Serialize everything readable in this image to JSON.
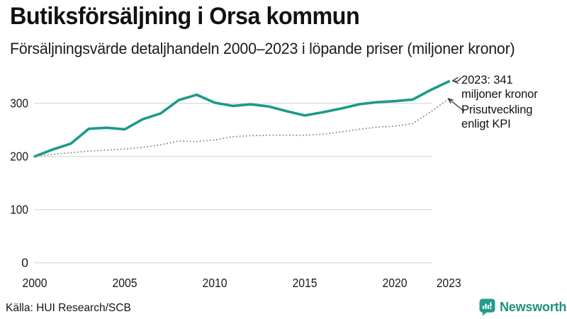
{
  "title": "Butiksförsäljning i Orsa kommun",
  "subtitle": "Försäljningsvärde detaljhandeln 2000–2023 i löpande priser (miljoner kronor)",
  "source": "Källa: HUI Research/SCB",
  "logo": {
    "text": "Newsworthy",
    "icon": "newsworthy-bubble-chart-icon"
  },
  "colors": {
    "accent": "#1c9a89",
    "kpi_dotted": "#8f8f8f",
    "grid": "#dedede",
    "text": "#111111",
    "logo": "#1f8f80"
  },
  "annotations": [
    {
      "lines": [
        "2023: 341",
        "miljoner kronor"
      ],
      "points_to": "solid-line-end"
    },
    {
      "lines": [
        "Prisutveckling",
        "enligt KPI"
      ],
      "points_to": "dotted-line-end"
    }
  ],
  "chart_data": {
    "type": "line",
    "title": "Butiksförsäljning i Orsa kommun",
    "subtitle": "Försäljningsvärde detaljhandeln 2000–2023 i löpande priser (miljoner kronor)",
    "x": [
      2000,
      2001,
      2002,
      2003,
      2004,
      2005,
      2006,
      2007,
      2008,
      2009,
      2010,
      2011,
      2012,
      2013,
      2014,
      2015,
      2016,
      2017,
      2018,
      2019,
      2020,
      2021,
      2022,
      2023
    ],
    "series": [
      {
        "name": "Försäljningsvärde i löpande priser",
        "style": "solid",
        "color": "#1c9a89",
        "values": [
          200,
          213,
          224,
          252,
          254,
          251,
          270,
          281,
          306,
          316,
          301,
          295,
          298,
          294,
          285,
          277,
          283,
          290,
          298,
          302,
          304,
          307,
          325,
          341
        ]
      },
      {
        "name": "Prisutveckling enligt KPI",
        "style": "dotted",
        "color": "#8f8f8f",
        "values": [
          200,
          204,
          207,
          210,
          212,
          214,
          217,
          222,
          229,
          228,
          231,
          237,
          239,
          240,
          240,
          240,
          242,
          246,
          251,
          255,
          257,
          262,
          284,
          308
        ]
      }
    ],
    "xticks": [
      2000,
      2005,
      2010,
      2015,
      2020,
      2023
    ],
    "yticks": [
      0,
      100,
      200,
      300
    ],
    "ylim": [
      0,
      360
    ],
    "grid": "horizontal",
    "legend_position": "none",
    "final_value_label": "2023: 341 miljoner kronor"
  }
}
